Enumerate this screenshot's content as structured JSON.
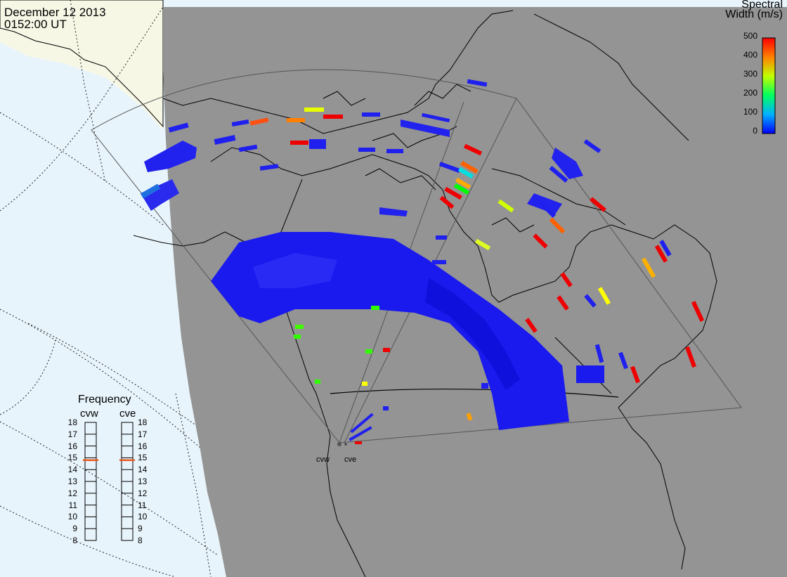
{
  "header": {
    "date": "December 12 2013",
    "time": "0152:00 UT"
  },
  "legend": {
    "title_line1": "Spectral",
    "title_line2": "Width (m/s)",
    "ticks": [
      "500",
      "400",
      "300",
      "200",
      "100",
      "0"
    ],
    "colors": [
      "#ff0000",
      "#ff8000",
      "#ffff00",
      "#00ff00",
      "#00ffff",
      "#0000ff"
    ]
  },
  "frequency_panel": {
    "title": "Frequency",
    "radars": [
      {
        "name": "cvw",
        "frequency_mhz": 15
      },
      {
        "name": "cve",
        "frequency_mhz": 15
      }
    ],
    "ticks": [
      "18",
      "17",
      "16",
      "15",
      "14",
      "13",
      "12",
      "11",
      "10",
      "9",
      "8"
    ]
  },
  "sites": [
    {
      "name": "cvw"
    },
    {
      "name": "cve"
    }
  ],
  "colors": {
    "ocean": "#e8f4fb",
    "land_daylight": "#f7f7e6",
    "night_shade": "#949494",
    "coastline": "#000000",
    "fov": "#555555",
    "marker": "#e85a1c"
  }
}
